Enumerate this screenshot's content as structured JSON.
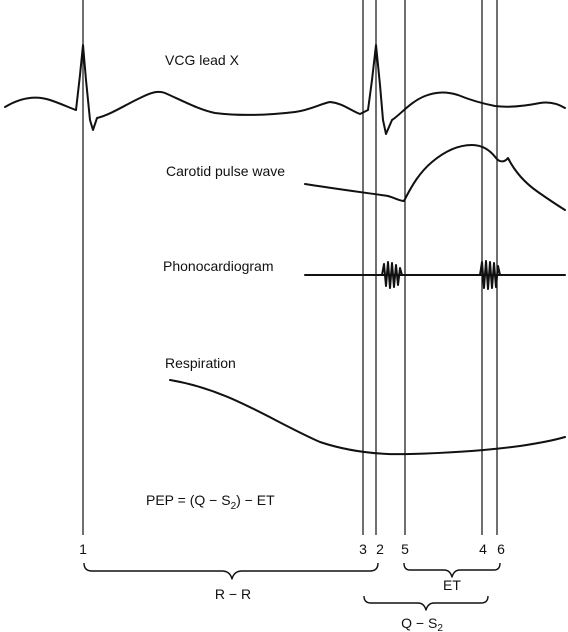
{
  "traces": {
    "vcg": "VCG lead X",
    "carotid": "Carotid pulse wave",
    "phono": "Phonocardiogram",
    "respiration": "Respiration"
  },
  "formula": {
    "lhs": "PEP = (Q − S",
    "sub": "2",
    "rhs": ") − ET"
  },
  "markers": [
    "1",
    "3",
    "2",
    "5",
    "4",
    "6"
  ],
  "intervals": {
    "rr": "R − R",
    "et": "ET",
    "qs2_main": "Q − S",
    "qs2_sub": "2"
  }
}
